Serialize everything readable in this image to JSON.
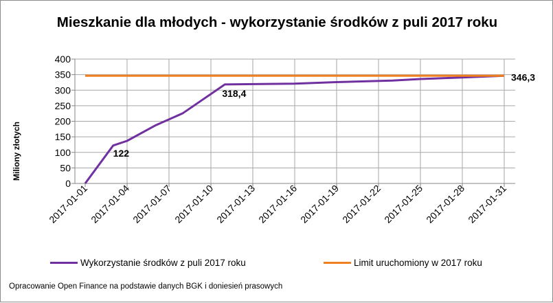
{
  "chart_data": {
    "type": "line",
    "title": "Mieszkanie dla młodych - wykorzystanie środków z puli 2017 roku",
    "ylabel": "Miliony złotych",
    "xlabel": "",
    "ylim": [
      0,
      400
    ],
    "y_ticks": [
      "0",
      "50",
      "100",
      "150",
      "200",
      "250",
      "300",
      "350",
      "400"
    ],
    "x_ticks": [
      "2017-01-01",
      "2017-01-04",
      "2017-01-07",
      "2017-01-10",
      "2017-01-13",
      "2017-01-16",
      "2017-01-19",
      "2017-01-22",
      "2017-01-25",
      "2017-01-28",
      "2017-01-31"
    ],
    "grid": true,
    "legend_position": "bottom",
    "series": [
      {
        "name": "Wykorzystanie środków z puli 2017 roku",
        "color": "#7030A0",
        "x": [
          "2017-01-01",
          "2017-01-03",
          "2017-01-04",
          "2017-01-06",
          "2017-01-08",
          "2017-01-11",
          "2017-01-16",
          "2017-01-19",
          "2017-01-23",
          "2017-01-25",
          "2017-01-28",
          "2017-01-31"
        ],
        "values": [
          0,
          122,
          137,
          186,
          226,
          318.4,
          321,
          326,
          331,
          336,
          341,
          346.3
        ]
      },
      {
        "name": "Limit uruchomiony w 2017 roku",
        "color": "#F07F20",
        "x": [
          "2017-01-01",
          "2017-01-31"
        ],
        "values": [
          346.3,
          346.3
        ]
      }
    ],
    "annotations": [
      {
        "text": "122",
        "x": "2017-01-03",
        "y": 122
      },
      {
        "text": "318,4",
        "x": "2017-01-11",
        "y": 318.4
      },
      {
        "text": "346,3",
        "x": "2017-01-31",
        "y": 346.3
      }
    ]
  },
  "source_note": "Opracowanie Open Finance  na podstawie danych BGK i doniesień prasowych"
}
